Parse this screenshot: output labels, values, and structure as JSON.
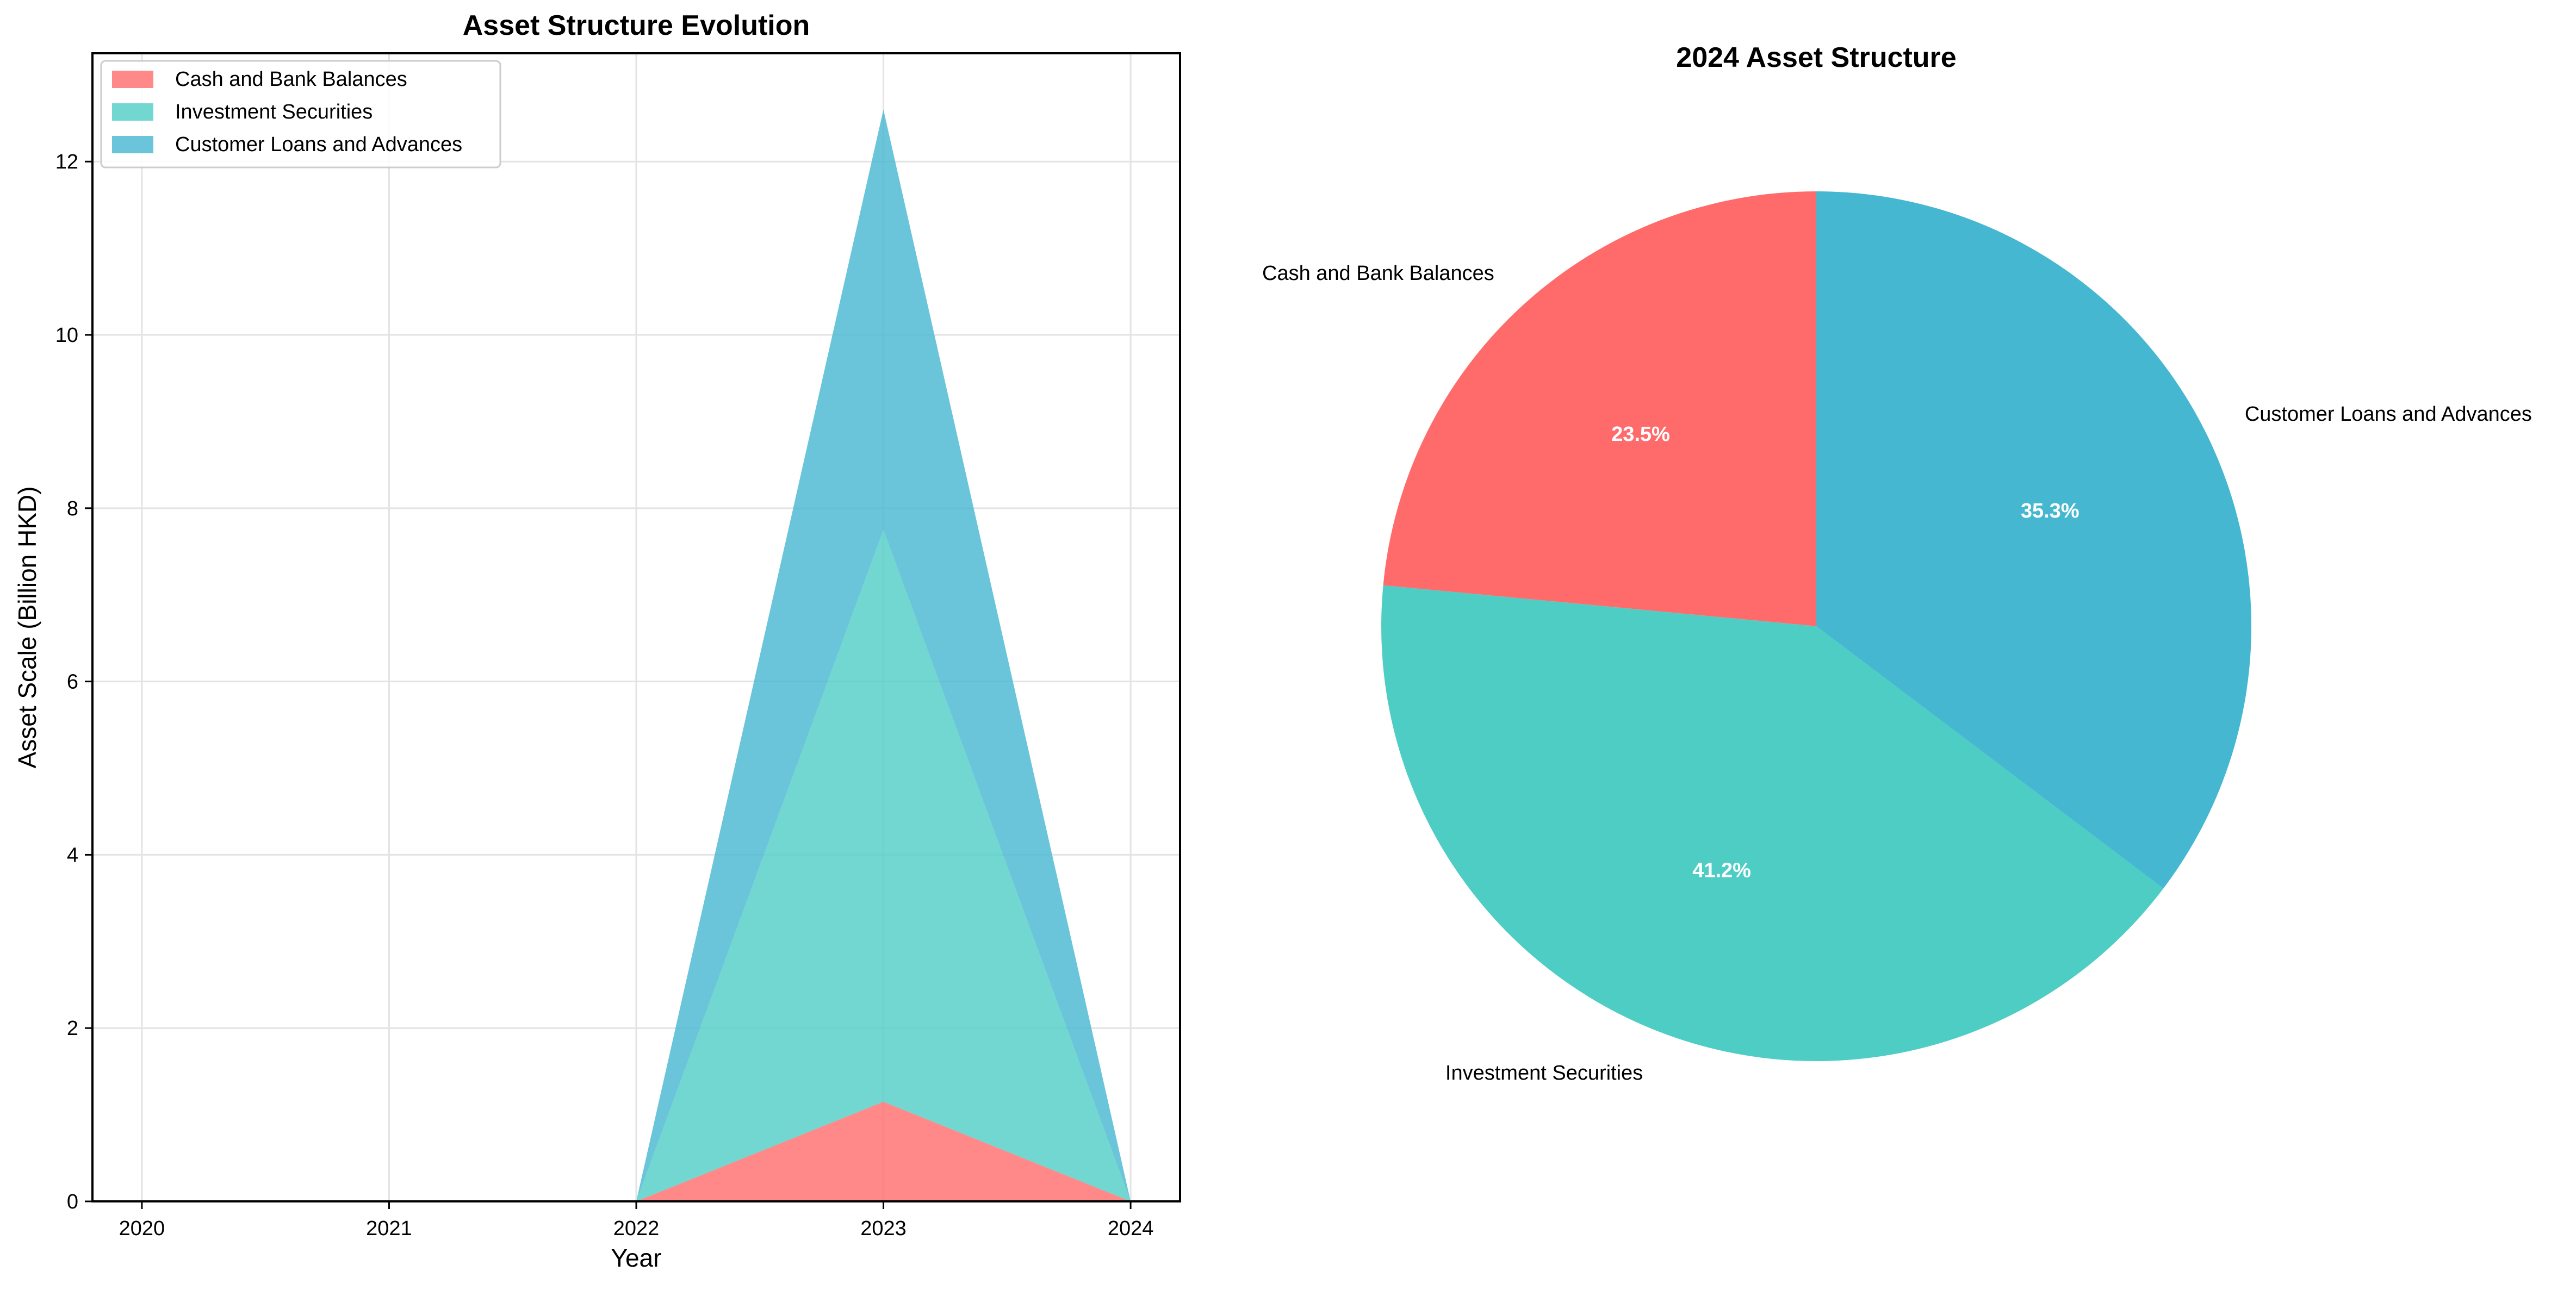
{
  "chart_data": [
    {
      "type": "area",
      "stacked": true,
      "title": "Asset Structure Evolution",
      "xlabel": "Year",
      "ylabel": "Asset Scale (Billion HKD)",
      "x": [
        2020,
        2021,
        2022,
        2023,
        2024
      ],
      "xticks": [
        "2020",
        "2021",
        "2022",
        "2023",
        "2024"
      ],
      "yticks": [
        "0",
        "2",
        "4",
        "6",
        "8",
        "10",
        "12"
      ],
      "ylim": [
        0,
        13.25
      ],
      "grid": true,
      "legend_position": "top-left",
      "series": [
        {
          "name": "Cash and Bank Balances",
          "values": [
            0,
            0,
            0,
            1.15,
            0
          ],
          "color": "#ff6b6b"
        },
        {
          "name": "Investment Securities",
          "values": [
            0,
            0,
            0,
            6.6,
            0
          ],
          "color": "#4ecdc4"
        },
        {
          "name": "Customer Loans and Advances",
          "values": [
            0,
            0,
            0,
            4.85,
            0
          ],
          "color": "#45b7d1"
        }
      ]
    },
    {
      "type": "pie",
      "title": "2024 Asset Structure",
      "slices": [
        {
          "label": "Cash and Bank Balances",
          "value": 23.5,
          "pct_label": "23.5%",
          "color": "#ff6b6b"
        },
        {
          "label": "Investment Securities",
          "value": 41.2,
          "pct_label": "41.2%",
          "color": "#4ecdc4"
        },
        {
          "label": "Customer Loans and Advances",
          "value": 35.3,
          "pct_label": "35.3%",
          "color": "#45b7d1"
        }
      ]
    }
  ]
}
